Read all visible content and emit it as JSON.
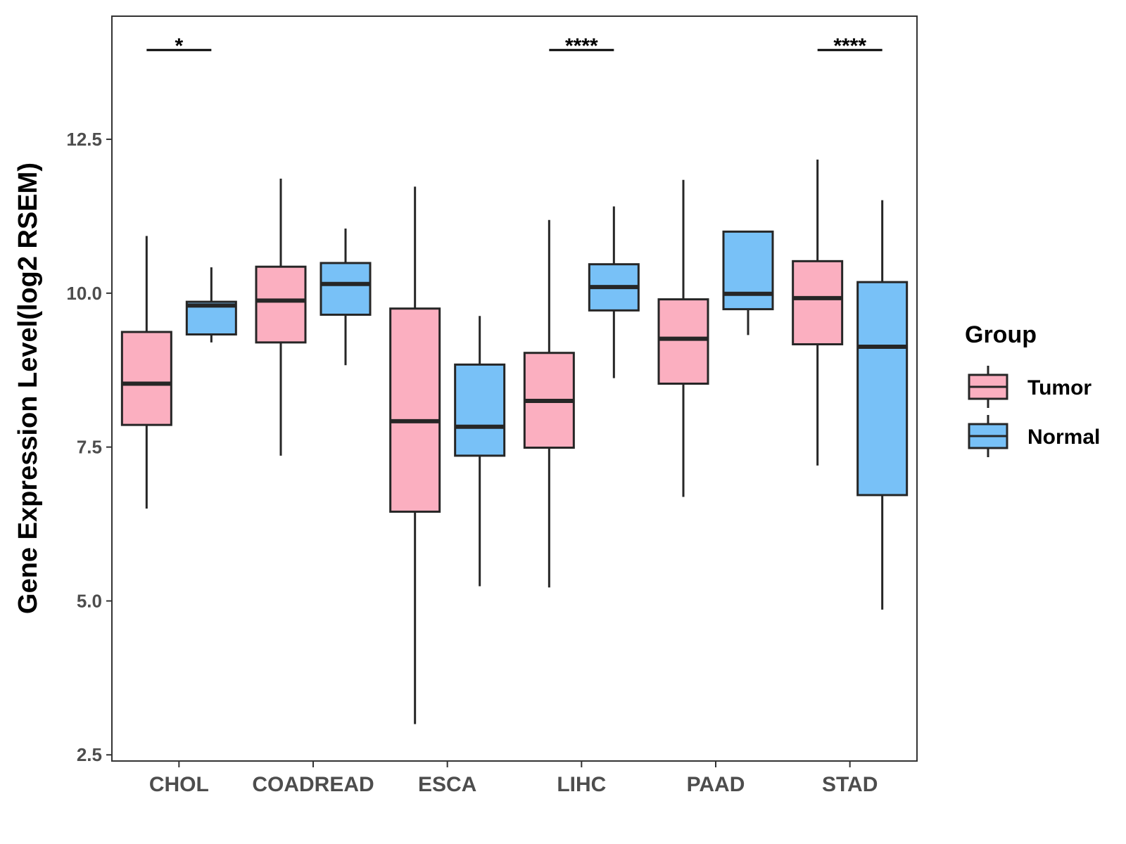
{
  "chart_data": {
    "type": "boxplot",
    "title": "",
    "xlabel": "",
    "ylabel": "Gene Expression Level(log2 RSEM)",
    "ylim": [
      2.4,
      14.5
    ],
    "yticks": [
      2.5,
      5.0,
      7.5,
      10.0,
      12.5
    ],
    "ytick_labels": [
      "2.5",
      "5.0",
      "7.5",
      "10.0",
      "12.5"
    ],
    "categories": [
      "CHOL",
      "COADREAD",
      "ESCA",
      "LIHC",
      "PAAD",
      "STAD"
    ],
    "grid": false,
    "series": [
      {
        "name": "Tumor",
        "color": "#FBAFC0",
        "boxes": [
          {
            "min": 6.5,
            "q1": 7.86,
            "median": 8.53,
            "q3": 9.37,
            "max": 10.93
          },
          {
            "min": 7.36,
            "q1": 9.2,
            "median": 9.88,
            "q3": 10.43,
            "max": 11.86
          },
          {
            "min": 3.0,
            "q1": 6.45,
            "median": 7.92,
            "q3": 9.75,
            "max": 11.73
          },
          {
            "min": 5.22,
            "q1": 7.49,
            "median": 8.25,
            "q3": 9.03,
            "max": 11.19
          },
          {
            "min": 6.69,
            "q1": 8.53,
            "median": 9.26,
            "q3": 9.9,
            "max": 11.84
          },
          {
            "min": 7.2,
            "q1": 9.17,
            "median": 9.92,
            "q3": 10.52,
            "max": 12.17
          }
        ]
      },
      {
        "name": "Normal",
        "color": "#78C1F7",
        "boxes": [
          {
            "min": 9.2,
            "q1": 9.33,
            "median": 9.8,
            "q3": 9.86,
            "max": 10.42
          },
          {
            "min": 8.83,
            "q1": 9.65,
            "median": 10.15,
            "q3": 10.49,
            "max": 11.05
          },
          {
            "min": 5.24,
            "q1": 7.36,
            "median": 7.83,
            "q3": 8.84,
            "max": 9.63
          },
          {
            "min": 8.62,
            "q1": 9.72,
            "median": 10.1,
            "q3": 10.47,
            "max": 11.41
          },
          {
            "min": 9.32,
            "q1": 9.74,
            "median": 9.99,
            "q3": 11.0,
            "max": 11.0
          },
          {
            "min": 4.86,
            "q1": 6.72,
            "median": 9.13,
            "q3": 10.18,
            "max": 11.51
          }
        ]
      }
    ],
    "significance": [
      {
        "category": "CHOL",
        "label": "*",
        "y": 13.95
      },
      {
        "category": "LIHC",
        "label": "****",
        "y": 13.95
      },
      {
        "category": "STAD",
        "label": "****",
        "y": 13.95
      }
    ],
    "legend": {
      "title": "Group",
      "position": "right",
      "entries": [
        "Tumor",
        "Normal"
      ]
    }
  }
}
